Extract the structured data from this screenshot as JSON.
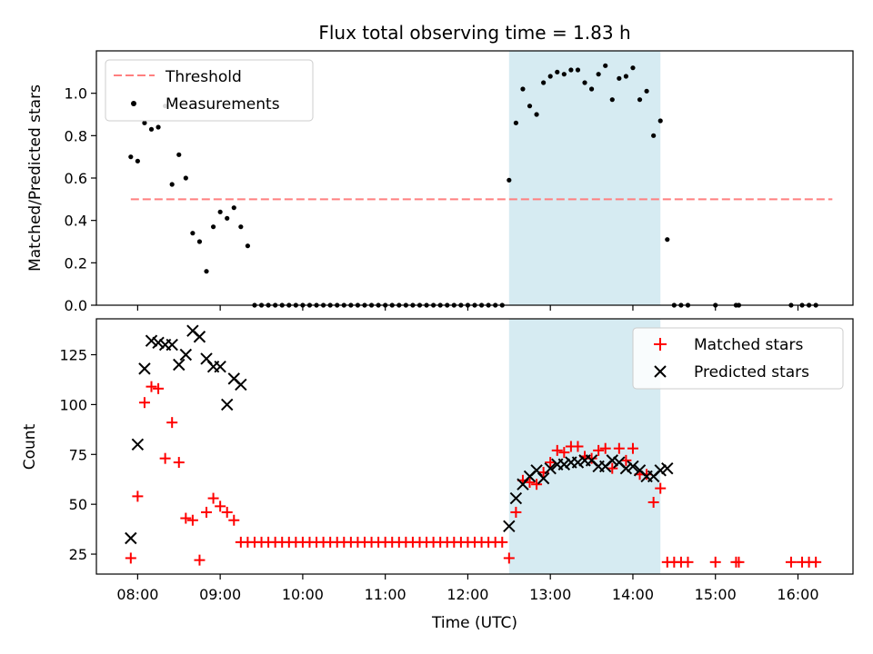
{
  "chart_data": [
    {
      "type": "scatter",
      "title": "Flux total observing time = 1.83 h",
      "xlabel": "",
      "ylabel": "Matched/Predicted stars",
      "xlim": [
        "07:30",
        "16:40"
      ],
      "ylim": [
        0,
        1.2
      ],
      "yticks": [
        0.0,
        0.2,
        0.4,
        0.6,
        0.8,
        1.0
      ],
      "ytick_labels": [
        "0.0",
        "0.2",
        "0.4",
        "0.6",
        "0.8",
        "1.0"
      ],
      "shaded_interval": [
        "12:30",
        "14:20"
      ],
      "legend": {
        "position": "upper-left",
        "entries": [
          {
            "label": "Threshold",
            "color": "#ff7f7f",
            "marker": "dashed-line"
          },
          {
            "label": "Measurements",
            "color": "#000000",
            "marker": "dot"
          }
        ]
      },
      "threshold": {
        "name": "Threshold",
        "y": 0.5,
        "x_start": "07:55",
        "x_end": "16:25",
        "color": "#ff7f7f"
      },
      "series": [
        {
          "name": "Measurements",
          "color": "#000000",
          "points": [
            [
              "07:55",
              0.7
            ],
            [
              "08:00",
              0.68
            ],
            [
              "08:05",
              0.86
            ],
            [
              "08:10",
              0.83
            ],
            [
              "08:15",
              0.84
            ],
            [
              "08:20",
              0.94
            ],
            [
              "08:25",
              0.57
            ],
            [
              "08:30",
              0.71
            ],
            [
              "08:35",
              0.6
            ],
            [
              "08:40",
              0.34
            ],
            [
              "08:45",
              0.3
            ],
            [
              "08:50",
              0.16
            ],
            [
              "08:55",
              0.37
            ],
            [
              "09:00",
              0.44
            ],
            [
              "09:05",
              0.41
            ],
            [
              "09:10",
              0.46
            ],
            [
              "09:15",
              0.37
            ],
            [
              "09:20",
              0.28
            ],
            [
              "09:25",
              0
            ],
            [
              "09:30",
              0
            ],
            [
              "09:35",
              0
            ],
            [
              "09:40",
              0
            ],
            [
              "09:45",
              0
            ],
            [
              "09:50",
              0
            ],
            [
              "09:55",
              0
            ],
            [
              "10:00",
              0
            ],
            [
              "10:05",
              0
            ],
            [
              "10:10",
              0
            ],
            [
              "10:15",
              0
            ],
            [
              "10:20",
              0
            ],
            [
              "10:25",
              0
            ],
            [
              "10:30",
              0
            ],
            [
              "10:35",
              0
            ],
            [
              "10:40",
              0
            ],
            [
              "10:45",
              0
            ],
            [
              "10:50",
              0
            ],
            [
              "10:55",
              0
            ],
            [
              "11:00",
              0
            ],
            [
              "11:05",
              0
            ],
            [
              "11:10",
              0
            ],
            [
              "11:15",
              0
            ],
            [
              "11:20",
              0
            ],
            [
              "11:25",
              0
            ],
            [
              "11:30",
              0
            ],
            [
              "11:35",
              0
            ],
            [
              "11:40",
              0
            ],
            [
              "11:45",
              0
            ],
            [
              "11:50",
              0
            ],
            [
              "11:55",
              0
            ],
            [
              "12:00",
              0
            ],
            [
              "12:05",
              0
            ],
            [
              "12:10",
              0
            ],
            [
              "12:15",
              0
            ],
            [
              "12:20",
              0
            ],
            [
              "12:25",
              0
            ],
            [
              "12:30",
              0.59
            ],
            [
              "12:35",
              0.86
            ],
            [
              "12:40",
              1.02
            ],
            [
              "12:45",
              0.94
            ],
            [
              "12:50",
              0.9
            ],
            [
              "12:55",
              1.05
            ],
            [
              "13:00",
              1.08
            ],
            [
              "13:05",
              1.1
            ],
            [
              "13:10",
              1.09
            ],
            [
              "13:15",
              1.11
            ],
            [
              "13:20",
              1.11
            ],
            [
              "13:25",
              1.05
            ],
            [
              "13:30",
              1.02
            ],
            [
              "13:35",
              1.09
            ],
            [
              "13:40",
              1.13
            ],
            [
              "13:45",
              0.97
            ],
            [
              "13:50",
              1.07
            ],
            [
              "13:55",
              1.08
            ],
            [
              "14:00",
              1.12
            ],
            [
              "14:05",
              0.97
            ],
            [
              "14:10",
              1.01
            ],
            [
              "14:15",
              0.8
            ],
            [
              "14:20",
              0.87
            ],
            [
              "14:25",
              0.31
            ],
            [
              "14:30",
              0
            ],
            [
              "14:35",
              0
            ],
            [
              "14:40",
              0
            ],
            [
              "15:00",
              0
            ],
            [
              "15:15",
              0
            ],
            [
              "15:17",
              0
            ],
            [
              "15:55",
              0
            ],
            [
              "16:03",
              0
            ],
            [
              "16:08",
              0
            ],
            [
              "16:13",
              0
            ]
          ]
        }
      ]
    },
    {
      "type": "scatter",
      "title": "",
      "xlabel": "Time (UTC)",
      "ylabel": "Count",
      "xlim": [
        "07:30",
        "16:40"
      ],
      "xticks": [
        "08:00",
        "09:00",
        "10:00",
        "11:00",
        "12:00",
        "13:00",
        "14:00",
        "15:00",
        "16:00"
      ],
      "ylim": [
        15,
        143
      ],
      "yticks": [
        25,
        50,
        75,
        100,
        125
      ],
      "ytick_labels": [
        "25",
        "50",
        "75",
        "100",
        "125"
      ],
      "shaded_interval": [
        "12:30",
        "14:20"
      ],
      "legend": {
        "position": "upper-right",
        "entries": [
          {
            "label": "Matched stars",
            "color": "#ff0000",
            "marker": "plus"
          },
          {
            "label": "Predicted stars",
            "color": "#000000",
            "marker": "x"
          }
        ]
      },
      "series": [
        {
          "name": "Matched stars",
          "color": "#ff0000",
          "marker": "plus",
          "points": [
            [
              "07:55",
              23
            ],
            [
              "08:00",
              54
            ],
            [
              "08:05",
              101
            ],
            [
              "08:10",
              109
            ],
            [
              "08:15",
              108
            ],
            [
              "08:20",
              73
            ],
            [
              "08:25",
              91
            ],
            [
              "08:30",
              71
            ],
            [
              "08:35",
              43
            ],
            [
              "08:40",
              42
            ],
            [
              "08:45",
              22
            ],
            [
              "08:50",
              46
            ],
            [
              "08:55",
              53
            ],
            [
              "09:00",
              49
            ],
            [
              "09:05",
              46
            ],
            [
              "09:10",
              42
            ],
            [
              "09:15",
              31
            ],
            [
              "09:20",
              31
            ],
            [
              "09:25",
              31
            ],
            [
              "09:30",
              31
            ],
            [
              "09:35",
              31
            ],
            [
              "09:40",
              31
            ],
            [
              "09:45",
              31
            ],
            [
              "09:50",
              31
            ],
            [
              "09:55",
              31
            ],
            [
              "10:00",
              31
            ],
            [
              "10:05",
              31
            ],
            [
              "10:10",
              31
            ],
            [
              "10:15",
              31
            ],
            [
              "10:20",
              31
            ],
            [
              "10:25",
              31
            ],
            [
              "10:30",
              31
            ],
            [
              "10:35",
              31
            ],
            [
              "10:40",
              31
            ],
            [
              "10:45",
              31
            ],
            [
              "10:50",
              31
            ],
            [
              "10:55",
              31
            ],
            [
              "11:00",
              31
            ],
            [
              "11:05",
              31
            ],
            [
              "11:10",
              31
            ],
            [
              "11:15",
              31
            ],
            [
              "11:20",
              31
            ],
            [
              "11:25",
              31
            ],
            [
              "11:30",
              31
            ],
            [
              "11:35",
              31
            ],
            [
              "11:40",
              31
            ],
            [
              "11:45",
              31
            ],
            [
              "11:50",
              31
            ],
            [
              "11:55",
              31
            ],
            [
              "12:00",
              31
            ],
            [
              "12:05",
              31
            ],
            [
              "12:10",
              31
            ],
            [
              "12:15",
              31
            ],
            [
              "12:20",
              31
            ],
            [
              "12:25",
              31
            ],
            [
              "12:30",
              23
            ],
            [
              "12:35",
              46
            ],
            [
              "12:40",
              62
            ],
            [
              "12:45",
              61
            ],
            [
              "12:50",
              60
            ],
            [
              "12:55",
              66
            ],
            [
              "13:00",
              71
            ],
            [
              "13:05",
              77
            ],
            [
              "13:10",
              76
            ],
            [
              "13:15",
              79
            ],
            [
              "13:20",
              79
            ],
            [
              "13:25",
              74
            ],
            [
              "13:30",
              73
            ],
            [
              "13:35",
              77
            ],
            [
              "13:40",
              78
            ],
            [
              "13:45",
              68
            ],
            [
              "13:50",
              78
            ],
            [
              "13:55",
              72
            ],
            [
              "14:00",
              78
            ],
            [
              "14:05",
              65
            ],
            [
              "14:10",
              65
            ],
            [
              "14:15",
              51
            ],
            [
              "14:20",
              58
            ],
            [
              "14:25",
              21
            ],
            [
              "14:30",
              21
            ],
            [
              "14:35",
              21
            ],
            [
              "14:40",
              21
            ],
            [
              "15:00",
              21
            ],
            [
              "15:15",
              21
            ],
            [
              "15:17",
              21
            ],
            [
              "15:55",
              21
            ],
            [
              "16:03",
              21
            ],
            [
              "16:08",
              21
            ],
            [
              "16:13",
              21
            ]
          ]
        },
        {
          "name": "Predicted stars",
          "color": "#000000",
          "marker": "x",
          "points": [
            [
              "07:55",
              33
            ],
            [
              "08:00",
              80
            ],
            [
              "08:05",
              118
            ],
            [
              "08:10",
              132
            ],
            [
              "08:15",
              131
            ],
            [
              "08:20",
              130
            ],
            [
              "08:25",
              130
            ],
            [
              "08:30",
              120
            ],
            [
              "08:35",
              125
            ],
            [
              "08:40",
              137
            ],
            [
              "08:45",
              134
            ],
            [
              "08:50",
              123
            ],
            [
              "08:55",
              119
            ],
            [
              "09:00",
              119
            ],
            [
              "09:05",
              100
            ],
            [
              "09:10",
              113
            ],
            [
              "09:15",
              110
            ],
            [
              "12:30",
              39
            ],
            [
              "12:35",
              53
            ],
            [
              "12:40",
              60
            ],
            [
              "12:45",
              64
            ],
            [
              "12:50",
              67
            ],
            [
              "12:55",
              63
            ],
            [
              "13:00",
              68
            ],
            [
              "13:05",
              70
            ],
            [
              "13:10",
              70
            ],
            [
              "13:15",
              71
            ],
            [
              "13:20",
              71
            ],
            [
              "13:25",
              72
            ],
            [
              "13:30",
              72
            ],
            [
              "13:35",
              69
            ],
            [
              "13:40",
              69
            ],
            [
              "13:45",
              72
            ],
            [
              "13:50",
              71
            ],
            [
              "13:55",
              68
            ],
            [
              "14:00",
              69
            ],
            [
              "14:05",
              67
            ],
            [
              "14:10",
              64
            ],
            [
              "14:15",
              64
            ],
            [
              "14:20",
              67
            ],
            [
              "14:25",
              68
            ]
          ]
        }
      ]
    }
  ]
}
